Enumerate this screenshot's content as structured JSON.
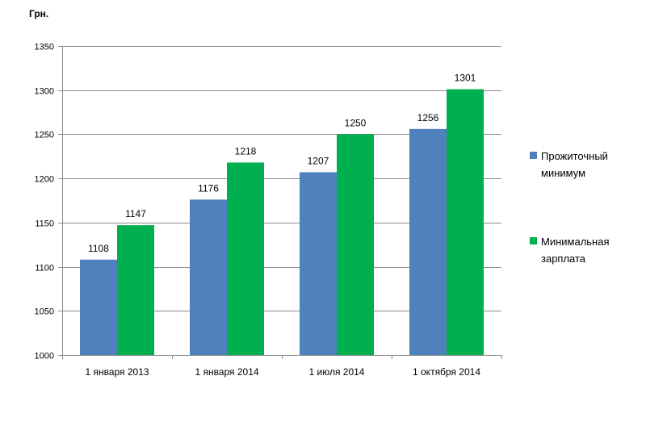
{
  "chart_data": {
    "type": "bar",
    "title": "",
    "ylabel": "Грн.",
    "xlabel": "",
    "categories": [
      "1 января 2013",
      "1 января 2014",
      "1 июля 2014",
      "1 октября 2014"
    ],
    "series": [
      {
        "name": "Прожиточный минимум",
        "values": [
          1108,
          1176,
          1207,
          1256
        ],
        "color": "#4F81BD"
      },
      {
        "name": "Минимальная зарплата",
        "values": [
          1147,
          1218,
          1250,
          1301
        ],
        "color": "#00B050"
      }
    ],
    "ylim": [
      1000,
      1350
    ],
    "yticks": [
      1000,
      1050,
      1100,
      1150,
      1200,
      1250,
      1300,
      1350
    ],
    "grid": true,
    "legend_position": "right"
  }
}
